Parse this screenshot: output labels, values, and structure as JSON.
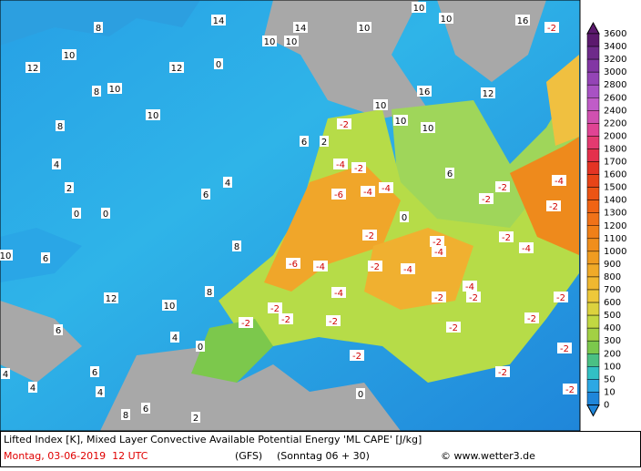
{
  "map": {
    "labels": [
      14,
      14,
      10,
      10,
      10,
      10,
      10,
      16,
      -2,
      8,
      10,
      12,
      12,
      0,
      8,
      10,
      10,
      8,
      4,
      2,
      0,
      0,
      10,
      6,
      12,
      10,
      -2,
      -4,
      -2,
      -6,
      -4,
      -4,
      0,
      -2,
      -2,
      -4,
      -2,
      -2,
      -2,
      -4,
      -2,
      -4,
      -6,
      -4,
      -4,
      -2,
      -4,
      -2,
      -2,
      -2,
      -2,
      -2,
      -4,
      -2,
      -2,
      -2,
      -2,
      -2,
      -2,
      -2,
      -2,
      0,
      0,
      10,
      10,
      16,
      12,
      6,
      10,
      2,
      6,
      4,
      6,
      8,
      8,
      4,
      6,
      4,
      8,
      6,
      2,
      4,
      4,
      6
    ]
  },
  "legend": {
    "levels": [
      3600,
      3400,
      3200,
      3000,
      2800,
      2600,
      2400,
      2200,
      2000,
      1800,
      1700,
      1600,
      1500,
      1400,
      1300,
      1200,
      1100,
      1000,
      900,
      800,
      700,
      600,
      500,
      400,
      300,
      200,
      100,
      50,
      10,
      0
    ],
    "colors": [
      "#5c1a6e",
      "#6e2a8a",
      "#8236a4",
      "#9444b6",
      "#a852c4",
      "#c05cc8",
      "#d050b0",
      "#e04494",
      "#e43a70",
      "#e4304c",
      "#e43424",
      "#e84418",
      "#ec5414",
      "#f06414",
      "#f07218",
      "#f08018",
      "#f08e1c",
      "#f09c20",
      "#f0aa28",
      "#f0b830",
      "#eec83a",
      "#dcd23e",
      "#c2d842",
      "#a2d044",
      "#7cc84c",
      "#4ac084",
      "#32c0c4",
      "#2ca8e4",
      "#1f86da"
    ]
  },
  "footer": {
    "description": "Lifted Index [K], Mixed Layer Convective Available Potential Energy 'ML CAPE' [J/kg]",
    "date": "Montag, 03-06-2019  12 UTC",
    "model": "(GFS)",
    "run": "(Sonntag 06 + 30)",
    "credit": "© www.wetter3.de"
  }
}
